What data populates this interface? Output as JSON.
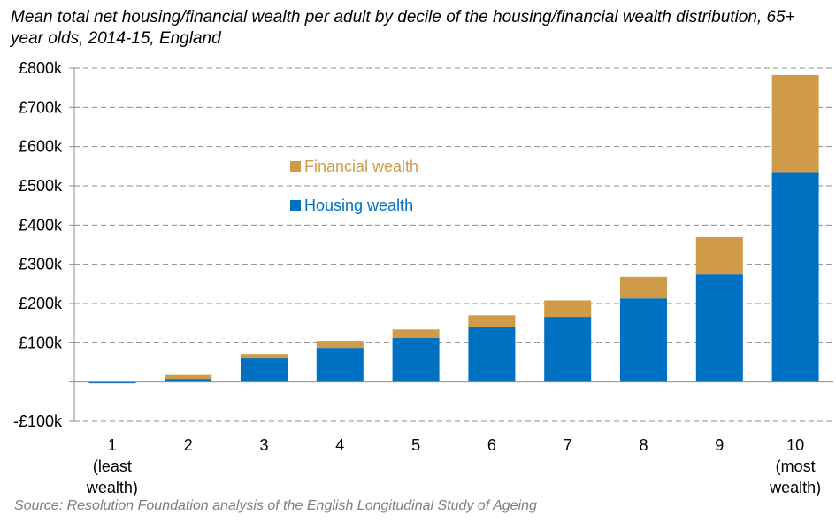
{
  "chart_data": {
    "type": "bar",
    "stacked": true,
    "title": "Mean total net housing/financial wealth per adult by decile of the housing/financial wealth distribution, 65+ year olds, 2014-15, England",
    "source": "Source: Resolution Foundation analysis of the English Longitudinal Study of Ageing",
    "categories": [
      [
        "1",
        "(least",
        "wealth)"
      ],
      [
        "2"
      ],
      [
        "3"
      ],
      [
        "4"
      ],
      [
        "5"
      ],
      [
        "6"
      ],
      [
        "7"
      ],
      [
        "8"
      ],
      [
        "9"
      ],
      [
        "10",
        "(most",
        "wealth)"
      ]
    ],
    "series": [
      {
        "name": "Housing wealth",
        "color": "#0070c0",
        "values": [
          -2,
          8,
          60,
          87,
          112,
          140,
          166,
          213,
          274,
          535
        ]
      },
      {
        "name": "Financial wealth",
        "color": "#d09b49",
        "values": [
          0,
          10,
          11,
          18,
          22,
          30,
          42,
          55,
          95,
          247
        ]
      }
    ],
    "ylim": [
      -100,
      800
    ],
    "yticks": [
      -100,
      0,
      100,
      200,
      300,
      400,
      500,
      600,
      700,
      800
    ],
    "ytick_labels": [
      "-£100k",
      "",
      "£100k",
      "£200k",
      "£300k",
      "£400k",
      "£500k",
      "£600k",
      "£700k",
      "£800k"
    ],
    "grid": true,
    "legend": {
      "position": "upper-left-center",
      "order": [
        "Financial wealth",
        "Housing wealth"
      ]
    }
  }
}
